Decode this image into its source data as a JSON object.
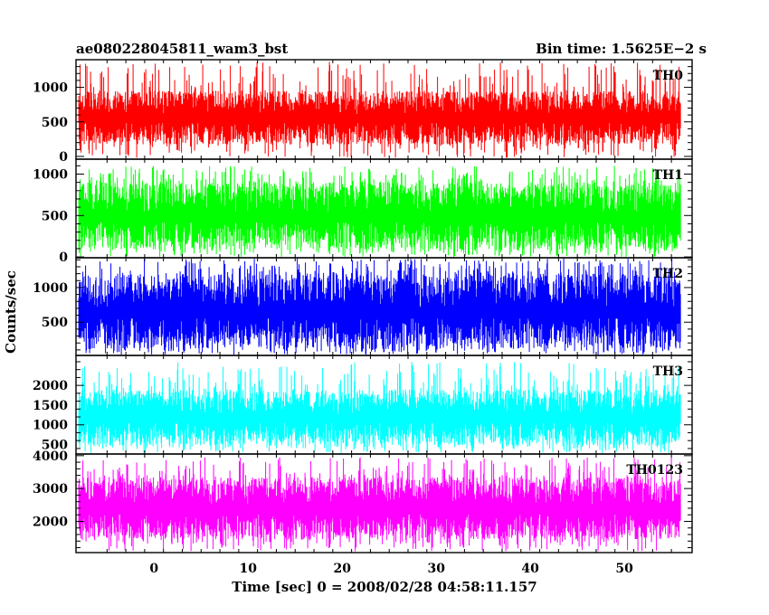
{
  "chart_data": {
    "type": "line",
    "title_left": "ae080228045811_wam3_bst",
    "title_right": "Bin time: 1.5625E−2 s",
    "xlabel": "Time [sec] 0 = 2008/02/28 04:58:11.157",
    "ylabel": "Counts/sec",
    "xlim": [
      -8.3,
      57.2
    ],
    "x_ticks": [
      0,
      10,
      20,
      30,
      40,
      50
    ],
    "data_range": [
      -8,
      56
    ],
    "bin_time": 0.015625,
    "grid": false,
    "panels": [
      {
        "name": "TH0",
        "color": "#ff0000",
        "ylim": [
          -40,
          1400
        ],
        "y_ticks": [
          0,
          500,
          1000
        ],
        "typical_range": [
          170,
          950
        ],
        "mean": 500,
        "spike_max": 1370
      },
      {
        "name": "TH1",
        "color": "#00ff00",
        "ylim": [
          -10,
          1180
        ],
        "y_ticks": [
          0,
          500,
          1000
        ],
        "typical_range": [
          90,
          900
        ],
        "mean": 450,
        "spike_max": 1100
      },
      {
        "name": "TH2",
        "color": "#0000ff",
        "ylim": [
          20,
          1430
        ],
        "y_ticks": [
          500,
          1000
        ],
        "typical_range": [
          120,
          1200
        ],
        "mean": 630,
        "spike_max": 1420
      },
      {
        "name": "TH3",
        "color": "#00ffff",
        "ylim": [
          260,
          2760
        ],
        "y_ticks": [
          500,
          1000,
          1500,
          2000
        ],
        "typical_range": [
          480,
          1900
        ],
        "mean": 1100,
        "spike_max": 2600
      },
      {
        "name": "TH0123",
        "color": "#ff00ff",
        "ylim": [
          1050,
          4050
        ],
        "y_ticks": [
          2000,
          3000,
          4000
        ],
        "typical_range": [
          1450,
          3350
        ],
        "mean": 2350,
        "spike_max": 3950
      }
    ]
  }
}
